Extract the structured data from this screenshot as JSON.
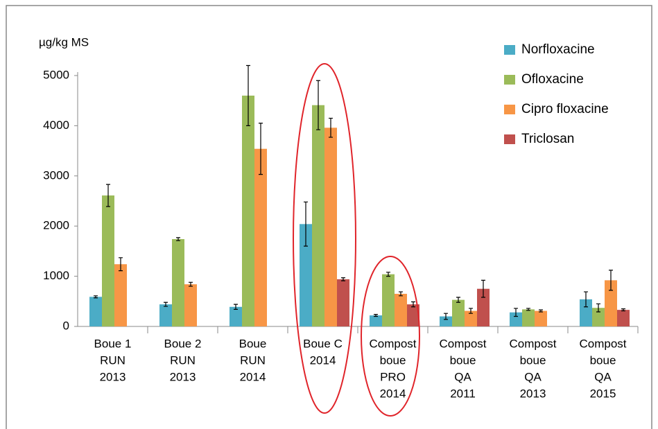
{
  "chart_data": {
    "type": "bar",
    "y_unit": "µg/kg MS",
    "categories": [
      [
        "Boue 1",
        "RUN",
        "2013"
      ],
      [
        "Boue 2",
        "RUN",
        "2013"
      ],
      [
        "Boue",
        "RUN",
        "2014"
      ],
      [
        "Boue C",
        "2014"
      ],
      [
        "Compost",
        "boue",
        "PRO",
        "2014"
      ],
      [
        "Compost",
        "boue",
        "QA",
        "2011"
      ],
      [
        "Compost",
        "boue",
        "QA",
        "2013"
      ],
      [
        "Compost",
        "boue",
        "QA",
        "2015"
      ]
    ],
    "series": [
      {
        "name": "Norfloxacine",
        "color": "#4bacc6",
        "values": [
          590,
          440,
          390,
          2040,
          220,
          200,
          280,
          540
        ],
        "errors": [
          20,
          40,
          50,
          440,
          20,
          60,
          80,
          150
        ]
      },
      {
        "name": "Ofloxacine",
        "color": "#9bbb59",
        "values": [
          2610,
          1740,
          4600,
          4410,
          1040,
          530,
          340,
          370
        ],
        "errors": [
          220,
          30,
          600,
          490,
          40,
          50,
          20,
          80
        ]
      },
      {
        "name": "Cipro floxacine",
        "color": "#f79646",
        "values": [
          1240,
          840,
          3540,
          3960,
          650,
          310,
          310,
          920
        ],
        "errors": [
          130,
          40,
          510,
          190,
          40,
          50,
          20,
          200
        ]
      },
      {
        "name": "Triclosan",
        "color": "#c0504d",
        "values": [
          null,
          null,
          null,
          940,
          440,
          750,
          null,
          330
        ],
        "errors": [
          null,
          null,
          null,
          30,
          50,
          170,
          null,
          20
        ]
      }
    ],
    "ylim": [
      0,
      5000
    ],
    "yticks": [
      0,
      1000,
      2000,
      3000,
      4000,
      5000
    ]
  }
}
